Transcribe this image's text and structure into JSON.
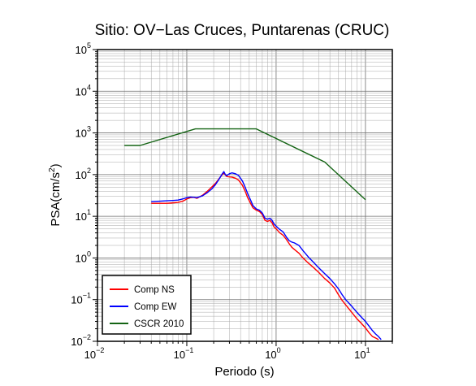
{
  "chart_data": {
    "type": "line",
    "title": "Sitio: OV−Las Cruces, Puntarenas (CRUC)",
    "xlabel": "Periodo (s)",
    "ylabel_base": "PSA(cm/s",
    "ylabel_sup": "2",
    "ylabel_close": ")",
    "x_scale": "log",
    "y_scale": "log",
    "xlim": [
      0.01,
      20
    ],
    "ylim": [
      0.01,
      100000
    ],
    "grid": true,
    "legend_position": "bottom-left",
    "x_ticks": [
      {
        "base": "10",
        "exp": "−2",
        "value": 0.01
      },
      {
        "base": "10",
        "exp": "−1",
        "value": 0.1
      },
      {
        "base": "10",
        "exp": "0",
        "value": 1
      },
      {
        "base": "10",
        "exp": "1",
        "value": 10
      }
    ],
    "y_ticks": [
      {
        "base": "10",
        "exp": "−2",
        "value": 0.01
      },
      {
        "base": "10",
        "exp": "−1",
        "value": 0.1
      },
      {
        "base": "10",
        "exp": "0",
        "value": 1
      },
      {
        "base": "10",
        "exp": "1",
        "value": 10
      },
      {
        "base": "10",
        "exp": "2",
        "value": 100
      },
      {
        "base": "10",
        "exp": "3",
        "value": 1000
      },
      {
        "base": "10",
        "exp": "4",
        "value": 10000
      },
      {
        "base": "10",
        "exp": "5",
        "value": 100000
      }
    ],
    "series": [
      {
        "name": "Comp NS",
        "color": "#ff0000",
        "points": [
          [
            0.04,
            20.5
          ],
          [
            0.05,
            20.5
          ],
          [
            0.06,
            20.5
          ],
          [
            0.07,
            21
          ],
          [
            0.08,
            21.5
          ],
          [
            0.09,
            23
          ],
          [
            0.1,
            26
          ],
          [
            0.11,
            28
          ],
          [
            0.12,
            28.5
          ],
          [
            0.13,
            27
          ],
          [
            0.15,
            32
          ],
          [
            0.17,
            40
          ],
          [
            0.19,
            50
          ],
          [
            0.21,
            62
          ],
          [
            0.23,
            80
          ],
          [
            0.25,
            100
          ],
          [
            0.26,
            110
          ],
          [
            0.27,
            98
          ],
          [
            0.28,
            90
          ],
          [
            0.3,
            88
          ],
          [
            0.32,
            87
          ],
          [
            0.35,
            82
          ],
          [
            0.38,
            74
          ],
          [
            0.42,
            55
          ],
          [
            0.45,
            40
          ],
          [
            0.48,
            28
          ],
          [
            0.52,
            20
          ],
          [
            0.55,
            16
          ],
          [
            0.6,
            14
          ],
          [
            0.65,
            13
          ],
          [
            0.7,
            11
          ],
          [
            0.75,
            8
          ],
          [
            0.8,
            7.5
          ],
          [
            0.85,
            8
          ],
          [
            0.9,
            7
          ],
          [
            0.95,
            5.5
          ],
          [
            1.0,
            5
          ],
          [
            1.1,
            4
          ],
          [
            1.2,
            3.5
          ],
          [
            1.3,
            2.8
          ],
          [
            1.4,
            2.2
          ],
          [
            1.5,
            1.8
          ],
          [
            1.6,
            1.6
          ],
          [
            1.8,
            1.3
          ],
          [
            2.0,
            1.0
          ],
          [
            2.3,
            0.75
          ],
          [
            2.6,
            0.6
          ],
          [
            3.0,
            0.45
          ],
          [
            3.5,
            0.32
          ],
          [
            4.0,
            0.25
          ],
          [
            4.5,
            0.19
          ],
          [
            5.0,
            0.13
          ],
          [
            5.5,
            0.095
          ],
          [
            6.0,
            0.075
          ],
          [
            7.0,
            0.05
          ],
          [
            8.0,
            0.035
          ],
          [
            9.0,
            0.027
          ],
          [
            10,
            0.021
          ],
          [
            11,
            0.016
          ],
          [
            12,
            0.013
          ],
          [
            13,
            0.012
          ],
          [
            14,
            0.011
          ]
        ]
      },
      {
        "name": "Comp EW",
        "color": "#0000ff",
        "points": [
          [
            0.04,
            22.5
          ],
          [
            0.05,
            23
          ],
          [
            0.06,
            23.5
          ],
          [
            0.07,
            24
          ],
          [
            0.08,
            24.5
          ],
          [
            0.09,
            26
          ],
          [
            0.1,
            28
          ],
          [
            0.11,
            29
          ],
          [
            0.12,
            28.5
          ],
          [
            0.13,
            28
          ],
          [
            0.15,
            31
          ],
          [
            0.17,
            37
          ],
          [
            0.19,
            45
          ],
          [
            0.21,
            58
          ],
          [
            0.23,
            78
          ],
          [
            0.25,
            105
          ],
          [
            0.26,
            118
          ],
          [
            0.27,
            100
          ],
          [
            0.28,
            95
          ],
          [
            0.3,
            105
          ],
          [
            0.32,
            110
          ],
          [
            0.35,
            105
          ],
          [
            0.38,
            95
          ],
          [
            0.42,
            70
          ],
          [
            0.45,
            50
          ],
          [
            0.48,
            35
          ],
          [
            0.52,
            24
          ],
          [
            0.55,
            18
          ],
          [
            0.6,
            15
          ],
          [
            0.65,
            14
          ],
          [
            0.7,
            12
          ],
          [
            0.75,
            9
          ],
          [
            0.8,
            8.5
          ],
          [
            0.85,
            9
          ],
          [
            0.9,
            8
          ],
          [
            0.95,
            6.5
          ],
          [
            1.0,
            5.8
          ],
          [
            1.1,
            4.8
          ],
          [
            1.2,
            4.2
          ],
          [
            1.3,
            3.2
          ],
          [
            1.4,
            2.6
          ],
          [
            1.5,
            2.4
          ],
          [
            1.6,
            2.3
          ],
          [
            1.8,
            2.0
          ],
          [
            2.0,
            1.5
          ],
          [
            2.3,
            1.05
          ],
          [
            2.6,
            0.8
          ],
          [
            3.0,
            0.58
          ],
          [
            3.5,
            0.42
          ],
          [
            4.0,
            0.32
          ],
          [
            4.5,
            0.24
          ],
          [
            5.0,
            0.18
          ],
          [
            5.5,
            0.13
          ],
          [
            6.0,
            0.1
          ],
          [
            7.0,
            0.07
          ],
          [
            8.0,
            0.05
          ],
          [
            9.0,
            0.038
          ],
          [
            10,
            0.03
          ],
          [
            11,
            0.023
          ],
          [
            12,
            0.018
          ],
          [
            13,
            0.015
          ],
          [
            14,
            0.013
          ],
          [
            15,
            0.011
          ]
        ]
      },
      {
        "name": "CSCR 2010",
        "color": "#146414",
        "points": [
          [
            0.02,
            500
          ],
          [
            0.03,
            500
          ],
          [
            0.125,
            1250
          ],
          [
            0.6,
            1250
          ],
          [
            3.5,
            200
          ],
          [
            10,
            25
          ]
        ]
      }
    ]
  }
}
